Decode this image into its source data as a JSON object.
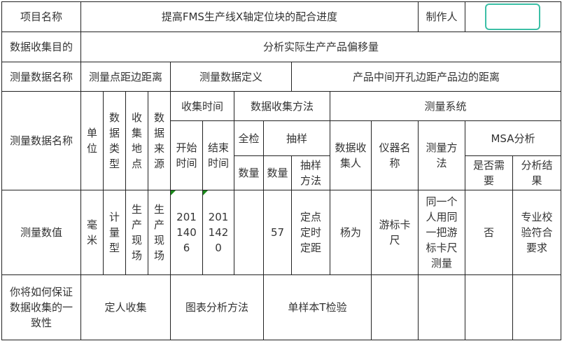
{
  "row1": {
    "project_label": "项目名称",
    "project_value": "提高FMS生产线X轴定位块的配合进度",
    "maker_label": "制作人",
    "maker_value": ""
  },
  "row2": {
    "purpose_label": "数据收集目的",
    "purpose_value": "分析实际生产产品偏移量"
  },
  "row3": {
    "name_label": "测量数据名称",
    "name_value": "测量点距边距离",
    "def_label": "测量数据定义",
    "def_value": "产品中间开孔边距产品边的距离"
  },
  "header": {
    "name": "测量数据名称",
    "unit": "单位",
    "data_type": "数据类型",
    "location": "收集地点",
    "source": "数据来源",
    "time": "收集时间",
    "start": "开始时间",
    "end": "结束时间",
    "method": "数据收集方法",
    "full": "全检",
    "sample": "抽样",
    "full_qty": "数量",
    "sample_qty": "数量",
    "sample_method": "抽样方法",
    "system": "测量系统",
    "collector": "数据收集人",
    "instrument": "仪器名称",
    "measure_method": "测量方法",
    "msa": "MSA分析",
    "msa_need": "是否需要",
    "msa_result": "分析结果"
  },
  "values": {
    "name": "测量数值",
    "unit": "毫米",
    "data_type": "计量型",
    "location": "生产现场",
    "source": "生产现场",
    "start": "2011406",
    "end": "2011420",
    "full_qty": "",
    "sample_qty": "57",
    "sample_method": "定点定时定距",
    "collector": "杨为",
    "instrument": "游标卡尺",
    "measure_method": "同一个人用同一把游标卡尺测量",
    "msa_need": "否",
    "msa_result": "专业校验符合要求"
  },
  "consistency": {
    "label": "你将如何保证数据收集的一致性",
    "collect": "定人收集",
    "chart_method": "图表分析方法",
    "test": "单样本T检验"
  },
  "colors": {
    "border": "#222222",
    "selection": "#3cbfa6",
    "comment_marker": "#1a8a1a"
  }
}
